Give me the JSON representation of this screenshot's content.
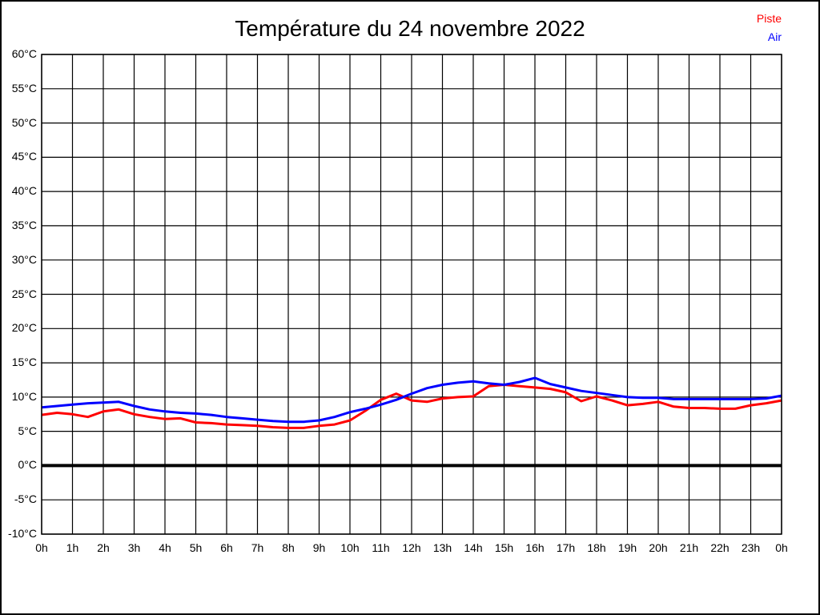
{
  "title": "Température du 24 novembre 2022",
  "legend": {
    "items": [
      {
        "label": "Piste",
        "color": "#ff0000"
      },
      {
        "label": "Air",
        "color": "#0000ff"
      }
    ]
  },
  "chart_data": {
    "type": "line",
    "title": "Température du 24 novembre 2022",
    "xlabel": "",
    "ylabel": "",
    "xlim": [
      0,
      24
    ],
    "ylim": [
      -10,
      60
    ],
    "grid": true,
    "grid_color": "#000000",
    "frame_color": "#000000",
    "zero_line_value": 0,
    "zero_line_color": "#000000",
    "background_color": "#ffffff",
    "legend_position": "top-right",
    "x_ticks": [
      0,
      1,
      2,
      3,
      4,
      5,
      6,
      7,
      8,
      9,
      10,
      11,
      12,
      13,
      14,
      15,
      16,
      17,
      18,
      19,
      20,
      21,
      22,
      23,
      24
    ],
    "x_tick_labels": [
      "0h",
      "1h",
      "2h",
      "3h",
      "4h",
      "5h",
      "6h",
      "7h",
      "8h",
      "9h",
      "10h",
      "11h",
      "12h",
      "13h",
      "14h",
      "15h",
      "16h",
      "17h",
      "18h",
      "19h",
      "20h",
      "21h",
      "22h",
      "23h",
      "0h"
    ],
    "y_ticks": [
      60,
      55,
      50,
      45,
      40,
      35,
      30,
      25,
      20,
      15,
      10,
      5,
      0,
      -5,
      -10
    ],
    "y_tick_labels": [
      "60°C",
      "55°C",
      "50°C",
      "45°C",
      "40°C",
      "35°C",
      "30°C",
      "25°C",
      "20°C",
      "15°C",
      "10°C",
      "5°C",
      "0°C",
      "-5°C",
      "-10°C"
    ],
    "x": [
      0,
      0.5,
      1,
      1.5,
      2,
      2.5,
      3,
      3.5,
      4,
      4.5,
      5,
      5.5,
      6,
      6.5,
      7,
      7.5,
      8,
      8.5,
      9,
      9.5,
      10,
      10.5,
      11,
      11.5,
      12,
      12.5,
      13,
      13.5,
      14,
      14.5,
      15,
      15.5,
      16,
      16.5,
      17,
      17.5,
      18,
      18.5,
      19,
      19.5,
      20,
      20.5,
      21,
      21.5,
      22,
      22.5,
      23,
      23.5,
      24
    ],
    "series": [
      {
        "name": "Piste",
        "color": "#ff0000",
        "values": [
          7.4,
          7.7,
          7.5,
          7.1,
          7.9,
          8.2,
          7.5,
          7.1,
          6.8,
          6.9,
          6.3,
          6.2,
          6.0,
          5.9,
          5.8,
          5.6,
          5.5,
          5.5,
          5.8,
          6.0,
          6.6,
          8.0,
          9.6,
          10.5,
          9.5,
          9.3,
          9.8,
          10.0,
          10.1,
          11.6,
          11.8,
          11.6,
          11.4,
          11.2,
          10.7,
          9.4,
          10.1,
          9.5,
          8.8,
          9.0,
          9.3,
          8.6,
          8.4,
          8.4,
          8.3,
          8.3,
          8.8,
          9.1,
          9.5
        ]
      },
      {
        "name": "Air",
        "color": "#0000ff",
        "values": [
          8.5,
          8.7,
          8.9,
          9.1,
          9.2,
          9.3,
          8.7,
          8.2,
          7.9,
          7.7,
          7.6,
          7.4,
          7.1,
          6.9,
          6.7,
          6.5,
          6.4,
          6.4,
          6.6,
          7.1,
          7.8,
          8.3,
          8.9,
          9.6,
          10.5,
          11.3,
          11.8,
          12.1,
          12.3,
          12.0,
          11.8,
          12.2,
          12.8,
          11.9,
          11.4,
          10.9,
          10.6,
          10.3,
          10.0,
          9.9,
          9.9,
          9.7,
          9.7,
          9.7,
          9.7,
          9.7,
          9.7,
          9.8,
          10.2
        ]
      }
    ]
  }
}
